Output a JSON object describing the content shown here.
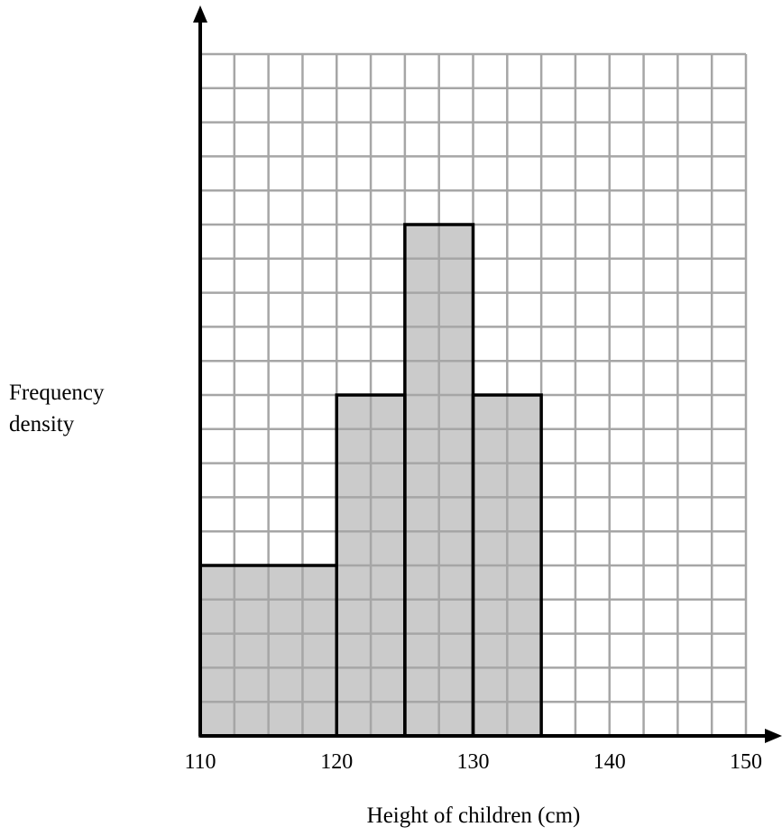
{
  "chart_data": {
    "type": "bar",
    "variant": "histogram",
    "xlabel": "Height of children (cm)",
    "ylabel_lines": [
      "Frequency",
      "density"
    ],
    "x_ticks": [
      110,
      120,
      130,
      140,
      150
    ],
    "xlim": [
      110,
      150
    ],
    "ylim": [
      0,
      19
    ],
    "y_tick_labels": "none",
    "grid": true,
    "grid_minor_x": 2.5,
    "grid_minor_y": 1,
    "bins": [
      {
        "from": 110,
        "to": 120,
        "height": 5
      },
      {
        "from": 120,
        "to": 125,
        "height": 10
      },
      {
        "from": 125,
        "to": 130,
        "height": 15
      },
      {
        "from": 130,
        "to": 135,
        "height": 10
      }
    ]
  },
  "colors": {
    "bar_fill": "#c8c8c8",
    "bar_outline": "#000000",
    "grid": "#a6a6a6",
    "axis": "#000000"
  }
}
